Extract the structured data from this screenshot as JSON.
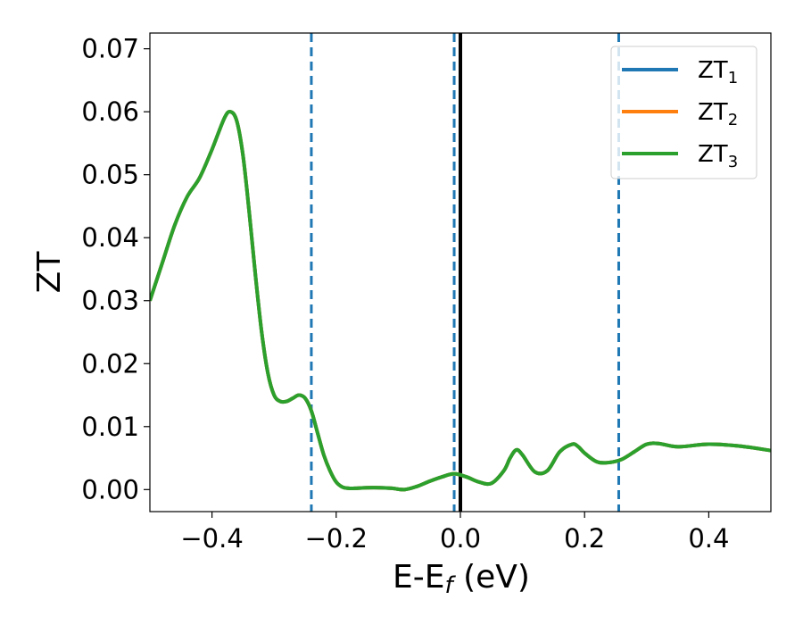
{
  "chart_data": {
    "type": "line",
    "xlabel": "E-E",
    "xlabel_sub": "f",
    "xlabel_unit": " (eV)",
    "ylabel": "ZT",
    "xlim": [
      -0.5,
      0.5
    ],
    "ylim": [
      -0.0035,
      0.0725
    ],
    "grid": false,
    "legend_placement": "top-right",
    "xticks": [
      -0.4,
      -0.2,
      0.0,
      0.2,
      0.4
    ],
    "xtick_labels": [
      "−0.4",
      "−0.2",
      "0.0",
      "0.2",
      "0.4"
    ],
    "yticks": [
      0.0,
      0.01,
      0.02,
      0.03,
      0.04,
      0.05,
      0.06,
      0.07
    ],
    "ytick_labels": [
      "0.00",
      "0.01",
      "0.02",
      "0.03",
      "0.04",
      "0.05",
      "0.06",
      "0.07"
    ],
    "series": [
      {
        "name": "ZT",
        "sub": "1",
        "color": "#1f77b4"
      },
      {
        "name": "ZT",
        "sub": "2",
        "color": "#ff7f0e"
      },
      {
        "name": "ZT",
        "sub": "3",
        "color": "#2ca02c"
      }
    ],
    "curve": {
      "x": [
        -0.5,
        -0.48,
        -0.46,
        -0.44,
        -0.42,
        -0.4,
        -0.38,
        -0.37,
        -0.36,
        -0.35,
        -0.34,
        -0.33,
        -0.32,
        -0.31,
        -0.3,
        -0.29,
        -0.28,
        -0.27,
        -0.26,
        -0.25,
        -0.24,
        -0.23,
        -0.22,
        -0.21,
        -0.2,
        -0.19,
        -0.18,
        -0.17,
        -0.15,
        -0.13,
        -0.11,
        -0.09,
        -0.07,
        -0.05,
        -0.03,
        -0.01,
        0.01,
        0.03,
        0.05,
        0.07,
        0.08,
        0.09,
        0.1,
        0.12,
        0.14,
        0.16,
        0.18,
        0.19,
        0.2,
        0.22,
        0.24,
        0.26,
        0.28,
        0.3,
        0.32,
        0.35,
        0.4,
        0.45,
        0.5
      ],
      "y": [
        0.03,
        0.036,
        0.042,
        0.0465,
        0.0495,
        0.054,
        0.059,
        0.06,
        0.0585,
        0.053,
        0.044,
        0.034,
        0.025,
        0.0185,
        0.015,
        0.014,
        0.014,
        0.0145,
        0.015,
        0.0145,
        0.0125,
        0.009,
        0.0055,
        0.003,
        0.0012,
        0.0004,
        0.0002,
        0.0002,
        0.0003,
        0.0003,
        0.0002,
        0.0,
        0.0005,
        0.0013,
        0.002,
        0.0025,
        0.002,
        0.0012,
        0.001,
        0.003,
        0.005,
        0.0063,
        0.0055,
        0.0028,
        0.003,
        0.006,
        0.0072,
        0.0068,
        0.0058,
        0.0044,
        0.0043,
        0.0048,
        0.006,
        0.0072,
        0.0073,
        0.0068,
        0.0072,
        0.0069,
        0.0062
      ]
    },
    "vlines_dashed": [
      -0.24,
      -0.01,
      0.255
    ],
    "vline_solid": 0.0
  }
}
